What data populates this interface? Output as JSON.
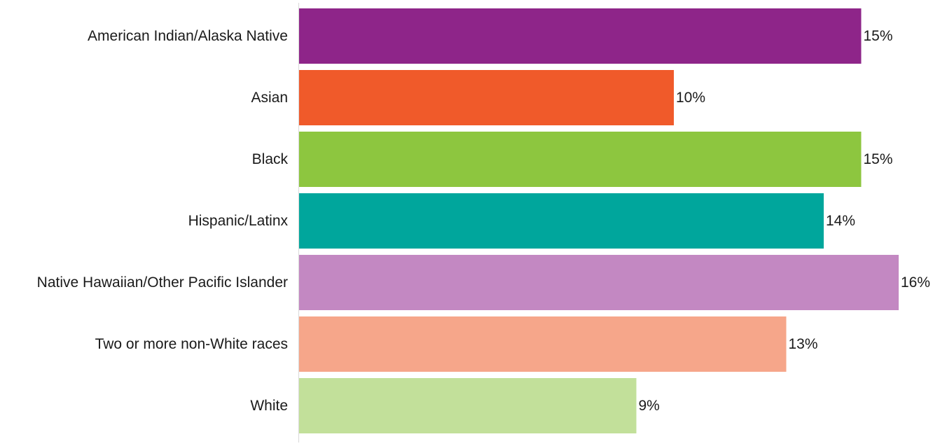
{
  "chart_data": {
    "type": "bar",
    "orientation": "horizontal",
    "title": "",
    "xlabel": "",
    "ylabel": "",
    "xlim": [
      0,
      16
    ],
    "grid": false,
    "legend": "none",
    "categories": [
      "American Indian/Alaska Native",
      "Asian",
      "Black",
      "Hispanic/Latinx",
      "Native Hawaiian/Other Pacific Islander",
      "Two or more non-White races",
      "White"
    ],
    "values": [
      15,
      10,
      15,
      14,
      16,
      13,
      9
    ],
    "value_labels": [
      "15%",
      "10%",
      "15%",
      "14%",
      "16%",
      "13%",
      "9%"
    ],
    "colors": [
      "#8E2589",
      "#F05A2A",
      "#8DC63F",
      "#00A69C",
      "#C388C2",
      "#F6A68A",
      "#C2E09A"
    ]
  }
}
